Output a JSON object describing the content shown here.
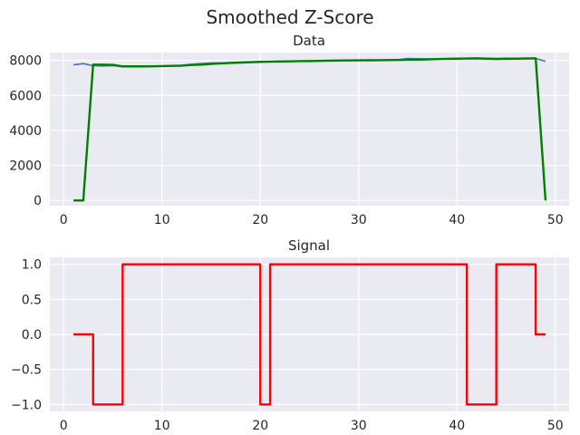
{
  "figure": {
    "title": "Smoothed Z-Score"
  },
  "colors": {
    "raw": "#4c72b0",
    "filtered": "#008000",
    "signal": "#ff0000",
    "background": "#eaeaf2",
    "grid": "#ffffff"
  },
  "chart_data": [
    {
      "type": "line",
      "title": "Data",
      "xlabel": "",
      "ylabel": "",
      "xlim": [
        -1.4,
        51.4
      ],
      "ylim": [
        -300,
        8450
      ],
      "xticks": [
        0,
        10,
        20,
        30,
        40,
        50
      ],
      "yticks": [
        0,
        2000,
        4000,
        6000,
        8000
      ],
      "grid": true,
      "series": [
        {
          "color": "#4c72b0",
          "x": [
            1,
            2,
            3,
            4,
            5,
            6,
            7,
            8,
            9,
            10,
            11,
            12,
            13,
            14,
            15,
            16,
            17,
            18,
            19,
            20,
            21,
            22,
            23,
            24,
            25,
            26,
            27,
            28,
            29,
            30,
            31,
            32,
            33,
            34,
            35,
            36,
            37,
            38,
            39,
            40,
            41,
            42,
            43,
            44,
            45,
            46,
            47,
            48,
            49
          ],
          "y": [
            7750,
            7820,
            7700,
            7680,
            7700,
            7650,
            7660,
            7660,
            7670,
            7680,
            7700,
            7720,
            7780,
            7820,
            7850,
            7860,
            7880,
            7900,
            7920,
            7930,
            7940,
            7950,
            7960,
            7970,
            7970,
            7980,
            7990,
            8000,
            8000,
            8010,
            8010,
            8020,
            8030,
            8040,
            8110,
            8100,
            8090,
            8080,
            8100,
            8110,
            8120,
            8130,
            8120,
            8110,
            8130,
            8120,
            8130,
            8110,
            7950
          ]
        },
        {
          "color": "#008000",
          "x": [
            1,
            2,
            3,
            4,
            5,
            6,
            7,
            8,
            9,
            10,
            11,
            12,
            13,
            14,
            15,
            16,
            17,
            18,
            19,
            20,
            21,
            22,
            23,
            24,
            25,
            26,
            27,
            28,
            29,
            30,
            31,
            32,
            33,
            34,
            35,
            36,
            37,
            38,
            39,
            40,
            41,
            42,
            43,
            44,
            45,
            46,
            47,
            48,
            49
          ],
          "y": [
            0,
            0,
            7760,
            7760,
            7750,
            7660,
            7660,
            7660,
            7665,
            7675,
            7690,
            7700,
            7740,
            7760,
            7800,
            7830,
            7860,
            7880,
            7900,
            7920,
            7930,
            7940,
            7950,
            7960,
            7965,
            7975,
            7985,
            7995,
            8000,
            8005,
            8010,
            8015,
            8020,
            8025,
            8040,
            8040,
            8060,
            8080,
            8090,
            8100,
            8110,
            8120,
            8100,
            8080,
            8090,
            8100,
            8110,
            8120,
            0
          ]
        }
      ]
    },
    {
      "type": "line",
      "title": "Signal",
      "xlabel": "",
      "ylabel": "",
      "xlim": [
        -1.4,
        51.4
      ],
      "ylim": [
        -1.1,
        1.1
      ],
      "xticks": [
        0,
        10,
        20,
        30,
        40,
        50
      ],
      "yticks": [
        -1.0,
        -0.5,
        0.0,
        0.5,
        1.0
      ],
      "ytick_labels": [
        "−1.0",
        "−0.5",
        "0.0",
        "0.5",
        "1.0"
      ],
      "grid": true,
      "series": [
        {
          "color": "#ff0000",
          "step": "post",
          "x": [
            1,
            2,
            3,
            4,
            5,
            6,
            7,
            8,
            9,
            10,
            11,
            12,
            13,
            14,
            15,
            16,
            17,
            18,
            19,
            20,
            21,
            22,
            23,
            24,
            25,
            26,
            27,
            28,
            29,
            30,
            31,
            32,
            33,
            34,
            35,
            36,
            37,
            38,
            39,
            40,
            41,
            42,
            43,
            44,
            45,
            46,
            47,
            48,
            49
          ],
          "y": [
            0,
            0,
            -1,
            -1,
            -1,
            1,
            1,
            1,
            1,
            1,
            1,
            1,
            1,
            1,
            1,
            1,
            1,
            1,
            1,
            -1,
            1,
            1,
            1,
            1,
            1,
            1,
            1,
            1,
            1,
            1,
            1,
            1,
            1,
            1,
            1,
            1,
            1,
            1,
            1,
            1,
            -1,
            -1,
            -1,
            1,
            1,
            1,
            1,
            0,
            0
          ]
        }
      ]
    }
  ]
}
